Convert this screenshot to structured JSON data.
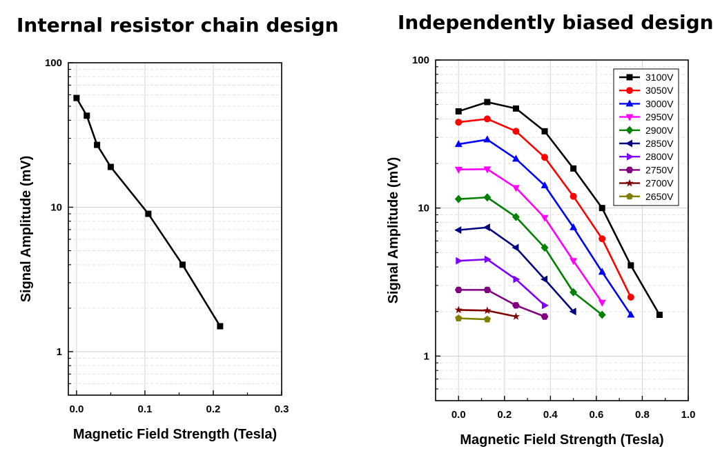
{
  "chart_data": [
    {
      "type": "line",
      "title": "Internal resistor chain design",
      "xlabel": "Magnetic Field Strength (Tesla)",
      "ylabel": "Signal Amplitude (mV)",
      "xlim": [
        -0.012,
        0.3
      ],
      "ylim": [
        0.5,
        100
      ],
      "yscale": "log",
      "grid": true,
      "x_ticks": [
        {
          "value": 0,
          "label": "0.0"
        },
        {
          "value": 0.1,
          "label": "0.1"
        },
        {
          "value": 0.2,
          "label": "0.2"
        },
        {
          "value": 0.3,
          "label": "0.3"
        }
      ],
      "y_ticks": [
        {
          "value": 1,
          "label": "1"
        },
        {
          "value": 10,
          "label": "10"
        },
        {
          "value": 100,
          "label": "100"
        }
      ],
      "series": [
        {
          "name": "Signal",
          "color": "#000000",
          "marker": "square",
          "x": [
            0,
            0.015,
            0.03,
            0.05,
            0.105,
            0.155,
            0.21
          ],
          "y": [
            57,
            43,
            27,
            19,
            9,
            4,
            1.5
          ]
        }
      ]
    },
    {
      "type": "line",
      "title": "Independently biased design",
      "xlabel": "Magnetic Field Strength (Tesla)",
      "ylabel": "Signal Amplitude (mV)",
      "xlim": [
        -0.1,
        1.0
      ],
      "ylim": [
        0.5,
        100
      ],
      "yscale": "log",
      "grid": true,
      "legend": "top-right",
      "x_ticks": [
        {
          "value": 0,
          "label": "0.0"
        },
        {
          "value": 0.2,
          "label": "0.2"
        },
        {
          "value": 0.4,
          "label": "0.4"
        },
        {
          "value": 0.6,
          "label": "0.6"
        },
        {
          "value": 0.8,
          "label": "0.8"
        },
        {
          "value": 1.0,
          "label": "1.0"
        }
      ],
      "y_ticks": [
        {
          "value": 1,
          "label": "1"
        },
        {
          "value": 10,
          "label": "10"
        },
        {
          "value": 100,
          "label": "100"
        }
      ],
      "series": [
        {
          "name": "3100V",
          "color": "#000000",
          "marker": "square",
          "x": [
            0,
            0.125,
            0.25,
            0.375,
            0.5,
            0.625,
            0.75,
            0.875
          ],
          "y": [
            45,
            52,
            47,
            33,
            18.5,
            10,
            4.1,
            1.9
          ]
        },
        {
          "name": "3050V",
          "color": "#ff0000",
          "marker": "circle",
          "x": [
            0,
            0.125,
            0.25,
            0.375,
            0.5,
            0.625,
            0.75
          ],
          "y": [
            38,
            40,
            33,
            22,
            12,
            6.2,
            2.5
          ]
        },
        {
          "name": "3000V",
          "color": "#0000ff",
          "marker": "triangle-up",
          "x": [
            0,
            0.125,
            0.25,
            0.375,
            0.5,
            0.625,
            0.75
          ],
          "y": [
            27,
            29,
            21.5,
            14.2,
            7.4,
            3.7,
            1.9
          ]
        },
        {
          "name": "2950V",
          "color": "#ff00ff",
          "marker": "triangle-down",
          "x": [
            0,
            0.125,
            0.25,
            0.375,
            0.5,
            0.625
          ],
          "y": [
            18.2,
            18.3,
            13.7,
            8.6,
            4.4,
            2.3
          ]
        },
        {
          "name": "2900V",
          "color": "#008000",
          "marker": "diamond",
          "x": [
            0,
            0.125,
            0.25,
            0.375,
            0.5,
            0.625
          ],
          "y": [
            11.5,
            11.8,
            8.7,
            5.4,
            2.7,
            1.9
          ]
        },
        {
          "name": "2850V",
          "color": "#000080",
          "marker": "triangle-left",
          "x": [
            0,
            0.125,
            0.25,
            0.375,
            0.5
          ],
          "y": [
            7.1,
            7.4,
            5.4,
            3.3,
            2.0
          ]
        },
        {
          "name": "2800V",
          "color": "#8000ff",
          "marker": "triangle-right",
          "x": [
            0,
            0.125,
            0.25,
            0.375
          ],
          "y": [
            4.4,
            4.5,
            3.3,
            2.2
          ]
        },
        {
          "name": "2750V",
          "color": "#800080",
          "marker": "hexagon",
          "x": [
            0,
            0.125,
            0.25,
            0.375
          ],
          "y": [
            2.8,
            2.8,
            2.2,
            1.85
          ]
        },
        {
          "name": "2700V",
          "color": "#800000",
          "marker": "star",
          "x": [
            0,
            0.125,
            0.25
          ],
          "y": [
            2.05,
            2.03,
            1.85
          ]
        },
        {
          "name": "2650V",
          "color": "#808000",
          "marker": "pentagon",
          "x": [
            0,
            0.125
          ],
          "y": [
            1.8,
            1.77
          ]
        }
      ]
    }
  ]
}
